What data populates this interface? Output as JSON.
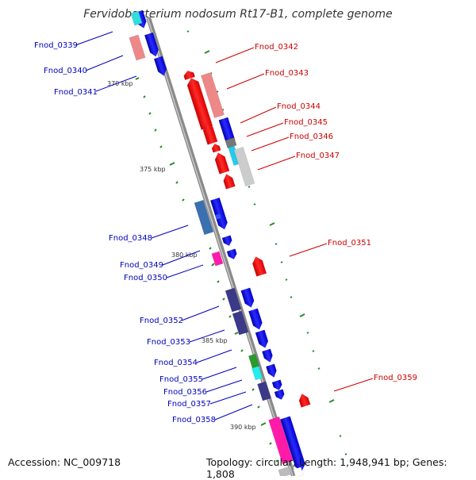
{
  "title": "Fervidobacterium nodosum Rt17-B1, complete genome",
  "footer": {
    "accession": "Accession: NC_009718",
    "topology": "Topology: circular; Length: 1,948,941 bp; Genes: 1,808"
  },
  "colors": {
    "backbone": "#8a8a8a",
    "scale_dots": "#2a8a2a",
    "label_forward": "#0000bb",
    "label_reverse": "#cc0000"
  },
  "ticks": [
    {
      "label": "370 kbp"
    },
    {
      "label": "375 kbp"
    },
    {
      "label": "380 kbp"
    },
    {
      "label": "385 kbp"
    },
    {
      "label": "390 kbp"
    }
  ],
  "gene_labels": [
    {
      "text": "Fnod_0339",
      "strand": "forward"
    },
    {
      "text": "Fnod_0340",
      "strand": "forward"
    },
    {
      "text": "Fnod_0341",
      "strand": "forward"
    },
    {
      "text": "Fnod_0342",
      "strand": "reverse"
    },
    {
      "text": "Fnod_0343",
      "strand": "reverse"
    },
    {
      "text": "Fnod_0344",
      "strand": "reverse"
    },
    {
      "text": "Fnod_0345",
      "strand": "reverse"
    },
    {
      "text": "Fnod_0346",
      "strand": "reverse"
    },
    {
      "text": "Fnod_0347",
      "strand": "reverse"
    },
    {
      "text": "Fnod_0348",
      "strand": "forward"
    },
    {
      "text": "Fnod_0349",
      "strand": "forward"
    },
    {
      "text": "Fnod_0350",
      "strand": "forward"
    },
    {
      "text": "Fnod_0351",
      "strand": "reverse"
    },
    {
      "text": "Fnod_0352",
      "strand": "forward"
    },
    {
      "text": "Fnod_0353",
      "strand": "forward"
    },
    {
      "text": "Fnod_0354",
      "strand": "forward"
    },
    {
      "text": "Fnod_0355",
      "strand": "forward"
    },
    {
      "text": "Fnod_0356",
      "strand": "forward"
    },
    {
      "text": "Fnod_0357",
      "strand": "forward"
    },
    {
      "text": "Fnod_0358",
      "strand": "forward"
    },
    {
      "text": "Fnod_0359",
      "strand": "reverse"
    }
  ]
}
